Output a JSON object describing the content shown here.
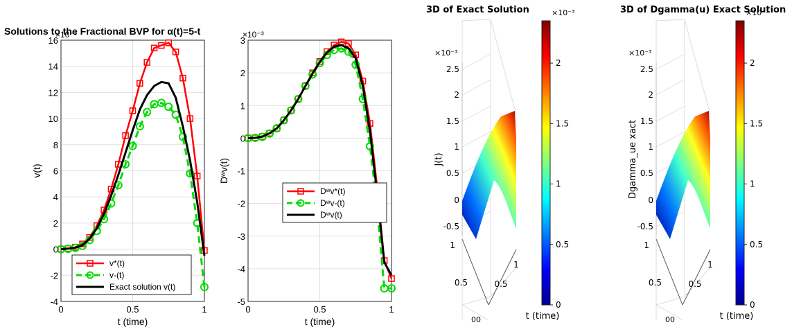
{
  "figure_title": "Solutions to the Fractional BVP for α(t)=5-t",
  "colors": {
    "v_star": "#ff0000",
    "v_minus": "#00dd00",
    "exact": "#000000",
    "grid": "#e0e0e0"
  },
  "chart_data": [
    {
      "type": "line",
      "xlabel": "t (time)",
      "ylabel": "v(t)",
      "exponent_label": "×10⁻³",
      "xlim": [
        0,
        1
      ],
      "ylim": [
        -4,
        16
      ],
      "x_ticks": [
        "0",
        "0.5",
        "1"
      ],
      "y_ticks": [
        "-4",
        "-2",
        "0",
        "2",
        "4",
        "6",
        "8",
        "10",
        "12",
        "14",
        "16"
      ],
      "grid": true,
      "legend_position": "bottom",
      "legend": [
        "v*(t)",
        "v-(t)",
        "Exact solution v(t)"
      ],
      "series": [
        {
          "name": "v*(t)",
          "style": "solid-square",
          "x": [
            0,
            0.05,
            0.1,
            0.15,
            0.2,
            0.25,
            0.3,
            0.35,
            0.4,
            0.45,
            0.5,
            0.55,
            0.6,
            0.65,
            0.7,
            0.75,
            0.8,
            0.85,
            0.9,
            0.95,
            1
          ],
          "y": [
            0,
            0.05,
            0.15,
            0.4,
            0.9,
            1.8,
            3.0,
            4.6,
            6.5,
            8.7,
            10.6,
            12.7,
            14.3,
            15.4,
            15.6,
            15.8,
            15.1,
            13.1,
            10.0,
            5.6,
            -0.1
          ]
        },
        {
          "name": "v-(t)",
          "style": "dashed-circle",
          "x": [
            0,
            0.05,
            0.1,
            0.15,
            0.2,
            0.25,
            0.3,
            0.35,
            0.4,
            0.45,
            0.5,
            0.55,
            0.6,
            0.65,
            0.7,
            0.75,
            0.8,
            0.85,
            0.9,
            0.95,
            1
          ],
          "y": [
            0,
            0.03,
            0.1,
            0.25,
            0.7,
            1.4,
            2.3,
            3.5,
            4.9,
            6.5,
            7.9,
            9.4,
            10.5,
            11.1,
            11.2,
            10.9,
            10.3,
            8.6,
            5.8,
            2.0,
            -2.9
          ]
        },
        {
          "name": "Exact solution v(t)",
          "style": "solid",
          "x": [
            0,
            0.05,
            0.1,
            0.15,
            0.2,
            0.25,
            0.3,
            0.35,
            0.4,
            0.45,
            0.5,
            0.55,
            0.6,
            0.65,
            0.7,
            0.75,
            0.8,
            0.85,
            0.9,
            0.95,
            1
          ],
          "y": [
            0,
            0.04,
            0.12,
            0.3,
            0.8,
            1.6,
            2.7,
            4.1,
            5.7,
            7.4,
            9.1,
            10.7,
            11.8,
            12.5,
            12.8,
            12.7,
            11.6,
            9.4,
            6.8,
            3.6,
            -0.5
          ]
        }
      ]
    },
    {
      "type": "line",
      "xlabel": "t (time)",
      "ylabel": "Dʷv(t)",
      "exponent_label": "×10⁻³",
      "xlim": [
        0,
        1
      ],
      "ylim": [
        -5,
        3
      ],
      "x_ticks": [
        "0",
        "0.5",
        "1"
      ],
      "y_ticks": [
        "-5",
        "-4",
        "-3",
        "-2",
        "-1",
        "0",
        "1",
        "2",
        "3"
      ],
      "grid": true,
      "legend_position": "middle-right",
      "legend": [
        "Dʷv*(t)",
        "Dʷv-(t)",
        "Dʷv(t)"
      ],
      "series": [
        {
          "name": "Dʷv*(t)",
          "style": "solid-square",
          "x": [
            0,
            0.05,
            0.1,
            0.15,
            0.2,
            0.25,
            0.3,
            0.35,
            0.4,
            0.45,
            0.5,
            0.55,
            0.6,
            0.65,
            0.7,
            0.75,
            0.8,
            0.85,
            0.9,
            0.95,
            1
          ],
          "y": [
            0,
            0.01,
            0.05,
            0.15,
            0.3,
            0.55,
            0.85,
            1.2,
            1.6,
            2.0,
            2.35,
            2.65,
            2.85,
            2.95,
            2.9,
            2.55,
            1.75,
            0.45,
            -1.5,
            -3.75,
            -4.3
          ]
        },
        {
          "name": "Dʷv-(t)",
          "style": "dashed-circle",
          "x": [
            0,
            0.05,
            0.1,
            0.15,
            0.2,
            0.25,
            0.3,
            0.35,
            0.4,
            0.45,
            0.5,
            0.55,
            0.6,
            0.65,
            0.7,
            0.75,
            0.8,
            0.85,
            0.9,
            0.95,
            1
          ],
          "y": [
            0,
            0.01,
            0.04,
            0.14,
            0.3,
            0.55,
            0.85,
            1.2,
            1.6,
            1.95,
            2.3,
            2.55,
            2.7,
            2.75,
            2.65,
            2.25,
            1.2,
            -0.25,
            -2.1,
            -4.6,
            -4.6
          ]
        },
        {
          "name": "Dʷv(t)",
          "style": "solid",
          "x": [
            0,
            0.05,
            0.1,
            0.15,
            0.2,
            0.25,
            0.3,
            0.35,
            0.4,
            0.45,
            0.5,
            0.55,
            0.6,
            0.65,
            0.7,
            0.75,
            0.8,
            0.85,
            0.9,
            0.95,
            1
          ],
          "y": [
            0,
            0.01,
            0.05,
            0.15,
            0.3,
            0.55,
            0.85,
            1.2,
            1.6,
            1.98,
            2.33,
            2.62,
            2.8,
            2.85,
            2.75,
            2.45,
            1.6,
            0.2,
            -1.7,
            -3.8,
            -4.2
          ]
        }
      ]
    },
    {
      "type": "surface",
      "title": "3D  of Exact Solution",
      "zlabel": "J(t)",
      "xlabel": "t (time)",
      "z_exponent_label": "×10⁻³",
      "z_ticks": [
        "2.5",
        "2",
        "1.5",
        "1",
        "0.5",
        "0",
        "-0.5"
      ],
      "y_ticks": [
        "1",
        "0.5",
        "0"
      ],
      "x_ticks": [
        "0",
        "0.5",
        "1"
      ],
      "origin_label": "00",
      "colorbar": {
        "exponent": "×10⁻³",
        "ticks": [
          "2",
          "1.5",
          "1",
          "0.5",
          "0"
        ],
        "range": [
          0,
          2.35
        ],
        "colormap": "jet"
      }
    },
    {
      "type": "surface",
      "title": "3D of Dgamma(u) Exact Solution",
      "zlabel": "Dgamma_ue xact",
      "xlabel": "t (time)",
      "z_exponent_label": "×10⁻³",
      "z_ticks": [
        "2.5",
        "2",
        "1.5",
        "1",
        "0.5",
        "0",
        "-0.5"
      ],
      "y_ticks": [
        "1",
        "0.5",
        "0"
      ],
      "x_ticks": [
        "0",
        "0.5",
        "1"
      ],
      "origin_label": "00",
      "colorbar": {
        "exponent": "×10⁻³",
        "ticks": [
          "2",
          "1.5",
          "1",
          "0.5",
          "0"
        ],
        "range": [
          0,
          2.35
        ],
        "colormap": "jet"
      }
    }
  ]
}
